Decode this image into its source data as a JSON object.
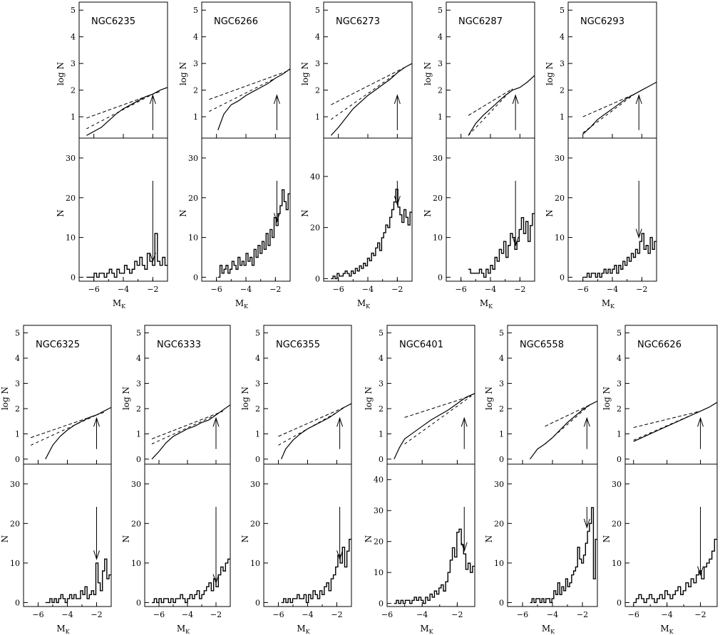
{
  "chart_data": [
    {
      "type": "line+histogram",
      "title": "NGC6235",
      "xlabel": "M_K",
      "ylabel_top": "log N",
      "ylabel_bottom": "N",
      "xlim": [
        -7,
        -1
      ],
      "xticks": [
        -6,
        -4,
        -2
      ],
      "ylim_top": [
        0.2,
        5.3
      ],
      "yticks_top": [
        1,
        2,
        3,
        4,
        5
      ],
      "ylim_bottom": [
        -1,
        35
      ],
      "yticks_bottom": [
        0,
        10,
        20,
        30
      ],
      "rgb_bump_mag": -2.0,
      "log_cum": {
        "x": [
          -6.5,
          -6,
          -5.5,
          -5,
          -4.5,
          -4,
          -3.5,
          -3,
          -2.5,
          -2,
          -1.5,
          -1
        ],
        "y": [
          0.3,
          0.45,
          0.6,
          0.85,
          1.1,
          1.3,
          1.45,
          1.6,
          1.75,
          1.85,
          2.0,
          2.1
        ]
      },
      "fit_bright": {
        "x": [
          -6.5,
          -1.5
        ],
        "y": [
          0.95,
          1.95
        ]
      },
      "fit_faint": {
        "x": [
          -6.5,
          -2
        ],
        "y": [
          0.55,
          1.85
        ]
      },
      "hist_values": [
        0,
        0,
        0,
        1,
        0,
        1,
        1,
        0,
        1,
        2,
        1,
        0,
        2,
        1,
        1,
        3,
        2,
        1,
        2,
        4,
        3,
        5,
        3,
        2,
        6,
        4,
        3,
        11,
        4,
        3,
        5,
        3
      ]
    },
    {
      "type": "line+histogram",
      "title": "NGC6266",
      "xlabel": "M_K",
      "ylabel_top": "log N",
      "ylabel_bottom": "N",
      "xlim": [
        -7,
        -1
      ],
      "xticks": [
        -6,
        -4,
        -2
      ],
      "ylim_top": [
        0.2,
        5.3
      ],
      "yticks_top": [
        1,
        2,
        3,
        4,
        5
      ],
      "ylim_bottom": [
        -1,
        35
      ],
      "yticks_bottom": [
        0,
        10,
        20,
        30
      ],
      "rgb_bump_mag": -1.9,
      "log_cum": {
        "x": [
          -5.9,
          -5.5,
          -5,
          -4.5,
          -4,
          -3.5,
          -3,
          -2.5,
          -2,
          -1.5,
          -1
        ],
        "y": [
          0.5,
          1.1,
          1.45,
          1.6,
          1.8,
          1.95,
          2.1,
          2.25,
          2.45,
          2.6,
          2.8
        ]
      },
      "fit_bright": {
        "x": [
          -6.5,
          -1
        ],
        "y": [
          1.65,
          2.75
        ]
      },
      "fit_faint": {
        "x": [
          -6.5,
          -2
        ],
        "y": [
          1.2,
          2.45
        ]
      },
      "hist_values": [
        0,
        3,
        1,
        2,
        3,
        1,
        2,
        4,
        3,
        2,
        5,
        3,
        4,
        3,
        6,
        4,
        5,
        3,
        7,
        5,
        8,
        6,
        9,
        7,
        11,
        8,
        12,
        10,
        15,
        13,
        16,
        18,
        22,
        19,
        17,
        21
      ]
    },
    {
      "type": "line+histogram",
      "title": "NGC6273",
      "xlabel": "M_K",
      "ylabel_top": "log N",
      "ylabel_bottom": "N",
      "xlim": [
        -7,
        -1
      ],
      "xticks": [
        -6,
        -4,
        -2
      ],
      "ylim_top": [
        0.2,
        5.3
      ],
      "yticks_top": [
        1,
        2,
        3,
        4,
        5
      ],
      "ylim_bottom": [
        -1,
        55
      ],
      "yticks_bottom": [
        0,
        20,
        40
      ],
      "rgb_bump_mag": -2.0,
      "log_cum": {
        "x": [
          -6.5,
          -6,
          -5.5,
          -5,
          -4.5,
          -4,
          -3.5,
          -3,
          -2.5,
          -2,
          -1.5,
          -1
        ],
        "y": [
          0.3,
          0.6,
          0.95,
          1.3,
          1.55,
          1.8,
          2.0,
          2.2,
          2.4,
          2.65,
          2.85,
          3.0
        ]
      },
      "fit_bright": {
        "x": [
          -6.5,
          -1.5
        ],
        "y": [
          1.45,
          2.85
        ]
      },
      "fit_faint": {
        "x": [
          -6.5,
          -2
        ],
        "y": [
          0.9,
          2.65
        ]
      },
      "hist_values": [
        0,
        1,
        0,
        2,
        1,
        1,
        2,
        3,
        2,
        1,
        3,
        2,
        4,
        3,
        5,
        4,
        6,
        5,
        8,
        7,
        10,
        9,
        12,
        14,
        11,
        16,
        18,
        21,
        20,
        24,
        27,
        30,
        35,
        28,
        25,
        22,
        27,
        24,
        21,
        26
      ]
    },
    {
      "type": "line+histogram",
      "title": "NGC6287",
      "xlabel": "M_K",
      "ylabel_top": "log N",
      "ylabel_bottom": "N",
      "xlim": [
        -7,
        -1
      ],
      "xticks": [
        -6,
        -4,
        -2
      ],
      "ylim_top": [
        0.2,
        5.3
      ],
      "yticks_top": [
        1,
        2,
        3,
        4,
        5
      ],
      "ylim_bottom": [
        -1,
        35
      ],
      "yticks_bottom": [
        0,
        10,
        20,
        30
      ],
      "rgb_bump_mag": -2.3,
      "log_cum": {
        "x": [
          -5.5,
          -5,
          -4.5,
          -4,
          -3.5,
          -3,
          -2.5,
          -2,
          -1.5,
          -1
        ],
        "y": [
          0.3,
          0.75,
          1.05,
          1.3,
          1.55,
          1.8,
          2.0,
          2.1,
          2.3,
          2.55
        ]
      },
      "fit_bright": {
        "x": [
          -5.5,
          -2.5
        ],
        "y": [
          1.05,
          2.05
        ]
      },
      "fit_faint": {
        "x": [
          -5.5,
          -2.5
        ],
        "y": [
          0.3,
          2.05
        ]
      },
      "hist_values": [
        2,
        1,
        1,
        1,
        1,
        2,
        1,
        0,
        2,
        1,
        3,
        2,
        5,
        4,
        7,
        6,
        9,
        5,
        8,
        11,
        10,
        7,
        9,
        12,
        15,
        11,
        14,
        9,
        13,
        16
      ]
    },
    {
      "type": "line+histogram",
      "title": "NGC6293",
      "xlabel": "M_K",
      "ylabel_top": "log N",
      "ylabel_bottom": "N",
      "xlim": [
        -7,
        -1
      ],
      "xticks": [
        -6,
        -4,
        -2
      ],
      "ylim_top": [
        0.2,
        5.3
      ],
      "yticks_top": [
        1,
        2,
        3,
        4,
        5
      ],
      "ylim_bottom": [
        -1,
        35
      ],
      "yticks_bottom": [
        0,
        10,
        20,
        30
      ],
      "rgb_bump_mag": -2.2,
      "log_cum": {
        "x": [
          -6,
          -5.5,
          -5,
          -4.5,
          -4,
          -3.5,
          -3,
          -2.5,
          -2,
          -1.5,
          -1
        ],
        "y": [
          0.35,
          0.6,
          0.9,
          1.1,
          1.3,
          1.5,
          1.7,
          1.85,
          2.0,
          2.15,
          2.3
        ]
      },
      "fit_bright": {
        "x": [
          -6,
          -2.5
        ],
        "y": [
          1.0,
          1.85
        ]
      },
      "fit_faint": {
        "x": [
          -6,
          -2.5
        ],
        "y": [
          0.4,
          1.85
        ]
      },
      "hist_values": [
        0,
        0,
        1,
        0,
        1,
        1,
        0,
        1,
        0,
        1,
        2,
        1,
        2,
        1,
        2,
        3,
        1,
        3,
        2,
        4,
        3,
        5,
        4,
        6,
        5,
        7,
        6,
        9,
        11,
        7,
        8,
        6,
        10,
        7,
        9
      ]
    },
    {
      "type": "line+histogram",
      "title": "NGC6325",
      "xlabel": "M_K",
      "ylabel_top": "log N",
      "ylabel_bottom": "N",
      "xlim": [
        -7,
        -1
      ],
      "xticks": [
        -6,
        -4,
        -2
      ],
      "ylim_top": [
        -0.2,
        5.3
      ],
      "yticks_top": [
        0,
        1,
        2,
        3,
        4,
        5
      ],
      "ylim_bottom": [
        -1,
        35
      ],
      "yticks_bottom": [
        0,
        10,
        20,
        30
      ],
      "rgb_bump_mag": -2.0,
      "log_cum": {
        "x": [
          -5.5,
          -5,
          -4.5,
          -4,
          -3.5,
          -3,
          -2.5,
          -2,
          -1.5,
          -1
        ],
        "y": [
          0.0,
          0.55,
          0.9,
          1.15,
          1.35,
          1.5,
          1.65,
          1.75,
          1.9,
          2.05
        ]
      },
      "fit_bright": {
        "x": [
          -6.5,
          -1.5
        ],
        "y": [
          0.85,
          1.85
        ]
      },
      "fit_faint": {
        "x": [
          -6.5,
          -2
        ],
        "y": [
          0.55,
          1.75
        ]
      },
      "hist_values": [
        0,
        0,
        1,
        0,
        1,
        0,
        1,
        2,
        1,
        0,
        1,
        2,
        1,
        2,
        1,
        1,
        3,
        2,
        4,
        1,
        2,
        3,
        2,
        10,
        5,
        3,
        8,
        11,
        6,
        7
      ]
    },
    {
      "type": "line+histogram",
      "title": "NGC6333",
      "xlabel": "M_K",
      "ylabel_top": "log N",
      "ylabel_bottom": "N",
      "xlim": [
        -7,
        -1
      ],
      "xticks": [
        -6,
        -4,
        -2
      ],
      "ylim_top": [
        -0.2,
        5.3
      ],
      "yticks_top": [
        0,
        1,
        2,
        3,
        4,
        5
      ],
      "ylim_bottom": [
        -1,
        35
      ],
      "yticks_bottom": [
        0,
        10,
        20,
        30
      ],
      "rgb_bump_mag": -2.0,
      "log_cum": {
        "x": [
          -6.5,
          -6,
          -5.5,
          -5,
          -4.5,
          -4,
          -3.5,
          -3,
          -2.5,
          -2,
          -1.5,
          -1
        ],
        "y": [
          0.0,
          0.3,
          0.65,
          0.9,
          1.05,
          1.2,
          1.3,
          1.45,
          1.55,
          1.75,
          1.95,
          2.15
        ]
      },
      "fit_bright": {
        "x": [
          -6.5,
          -1.5
        ],
        "y": [
          0.8,
          1.9
        ]
      },
      "fit_faint": {
        "x": [
          -6.5,
          -2
        ],
        "y": [
          0.6,
          1.75
        ]
      },
      "hist_values": [
        0,
        1,
        0,
        1,
        0,
        1,
        1,
        0,
        1,
        0,
        1,
        1,
        2,
        1,
        0,
        1,
        2,
        1,
        2,
        3,
        1,
        2,
        3,
        4,
        5,
        3,
        6,
        4,
        7,
        9,
        8,
        10,
        11
      ]
    },
    {
      "type": "line+histogram",
      "title": "NGC6355",
      "xlabel": "M_K",
      "ylabel_top": "log N",
      "ylabel_bottom": "N",
      "xlim": [
        -7,
        -1
      ],
      "xticks": [
        -6,
        -4,
        -2
      ],
      "ylim_top": [
        -0.2,
        5.3
      ],
      "yticks_top": [
        0,
        1,
        2,
        3,
        4,
        5
      ],
      "ylim_bottom": [
        -1,
        35
      ],
      "yticks_bottom": [
        0,
        10,
        20,
        30
      ],
      "rgb_bump_mag": -1.8,
      "log_cum": {
        "x": [
          -5.8,
          -5.5,
          -5,
          -4.5,
          -4,
          -3.5,
          -3,
          -2.5,
          -2,
          -1.5,
          -1
        ],
        "y": [
          0.0,
          0.4,
          0.75,
          1.0,
          1.2,
          1.35,
          1.5,
          1.65,
          1.85,
          2.05,
          2.2
        ]
      },
      "fit_bright": {
        "x": [
          -6,
          -1.5
        ],
        "y": [
          0.9,
          2.05
        ]
      },
      "fit_faint": {
        "x": [
          -6,
          -2
        ],
        "y": [
          0.55,
          1.85
        ]
      },
      "hist_values": [
        0,
        1,
        0,
        1,
        0,
        1,
        1,
        2,
        1,
        1,
        2,
        0,
        2,
        1,
        3,
        2,
        1,
        3,
        2,
        4,
        5,
        3,
        6,
        7,
        9,
        12,
        10,
        14,
        9,
        13,
        16
      ]
    },
    {
      "type": "line+histogram",
      "title": "NGC6401",
      "xlabel": "M_K",
      "ylabel_top": "log N",
      "ylabel_bottom": "N",
      "xlim": [
        -6,
        -1
      ],
      "xticks": [
        -6,
        -4,
        -2
      ],
      "ylim_top": [
        -0.2,
        5.3
      ],
      "yticks_top": [
        0,
        1,
        2,
        3,
        4,
        5
      ],
      "ylim_bottom": [
        -1,
        45
      ],
      "yticks_bottom": [
        0,
        10,
        20,
        30,
        40
      ],
      "rgb_bump_mag": -1.6,
      "log_cum": {
        "x": [
          -5.6,
          -5.3,
          -5,
          -4.5,
          -4,
          -3.5,
          -3,
          -2.5,
          -2,
          -1.5,
          -1
        ],
        "y": [
          0.0,
          0.45,
          0.8,
          1.05,
          1.3,
          1.55,
          1.75,
          1.95,
          2.2,
          2.45,
          2.6
        ]
      },
      "fit_bright": {
        "x": [
          -5,
          -1.2
        ],
        "y": [
          1.65,
          2.5
        ]
      },
      "fit_faint": {
        "x": [
          -5,
          -1.2
        ],
        "y": [
          0.6,
          2.5
        ]
      },
      "hist_values": [
        0,
        1,
        0,
        1,
        0,
        1,
        1,
        0,
        1,
        2,
        1,
        2,
        1,
        0,
        2,
        1,
        3,
        2,
        4,
        3,
        5,
        6,
        4,
        7,
        10,
        14,
        18,
        15,
        23,
        24,
        19,
        16,
        11,
        13,
        10,
        12
      ]
    },
    {
      "type": "line+histogram",
      "title": "NGC6558",
      "xlabel": "M_K",
      "ylabel_top": "log N",
      "ylabel_bottom": "N",
      "xlim": [
        -7,
        -1
      ],
      "xticks": [
        -6,
        -4,
        -2
      ],
      "ylim_top": [
        -0.2,
        5.3
      ],
      "yticks_top": [
        0,
        1,
        2,
        3,
        4,
        5
      ],
      "ylim_bottom": [
        -1,
        35
      ],
      "yticks_bottom": [
        0,
        10,
        20,
        30
      ],
      "rgb_bump_mag": -1.7,
      "log_cum": {
        "x": [
          -5.5,
          -5,
          -4.5,
          -4,
          -3.5,
          -3,
          -2.5,
          -2,
          -1.5,
          -1
        ],
        "y": [
          0.0,
          0.4,
          0.6,
          0.85,
          1.15,
          1.45,
          1.7,
          1.95,
          2.15,
          2.3
        ]
      },
      "fit_bright": {
        "x": [
          -4.5,
          -1.5
        ],
        "y": [
          1.3,
          2.15
        ]
      },
      "fit_faint": {
        "x": [
          -4.5,
          -1.5
        ],
        "y": [
          0.6,
          2.15
        ]
      },
      "hist_values": [
        0,
        1,
        0,
        1,
        1,
        0,
        1,
        0,
        1,
        1,
        0,
        1,
        3,
        2,
        5,
        2,
        4,
        3,
        6,
        4,
        5,
        7,
        8,
        9,
        14,
        11,
        10,
        12,
        15,
        18,
        20,
        24,
        6,
        16
      ]
    },
    {
      "type": "line+histogram",
      "title": "NGC6626",
      "xlabel": "M_K",
      "ylabel_top": "log N",
      "ylabel_bottom": "N",
      "xlim": [
        -6.5,
        -1
      ],
      "xticks": [
        -6,
        -4,
        -2
      ],
      "ylim_top": [
        -0.2,
        5.3
      ],
      "yticks_top": [
        0,
        1,
        2,
        3,
        4,
        5
      ],
      "ylim_bottom": [
        -1,
        35
      ],
      "yticks_bottom": [
        0,
        10,
        20,
        30
      ],
      "rgb_bump_mag": -2.0,
      "log_cum": {
        "x": [
          -6,
          -5.5,
          -5,
          -4.5,
          -4,
          -3.5,
          -3,
          -2.5,
          -2,
          -1.5,
          -1
        ],
        "y": [
          0.7,
          0.85,
          1.0,
          1.15,
          1.3,
          1.45,
          1.6,
          1.75,
          1.9,
          2.05,
          2.25
        ]
      },
      "fit_bright": {
        "x": [
          -6,
          -2
        ],
        "y": [
          1.25,
          1.9
        ]
      },
      "fit_faint": {
        "x": [
          -6,
          -2
        ],
        "y": [
          0.75,
          1.9
        ]
      },
      "hist_values": [
        0,
        1,
        2,
        1,
        0,
        1,
        2,
        1,
        0,
        1,
        2,
        1,
        3,
        2,
        1,
        2,
        3,
        4,
        2,
        3,
        5,
        4,
        6,
        5,
        7,
        8,
        6,
        9,
        10,
        11,
        13,
        16
      ]
    }
  ]
}
